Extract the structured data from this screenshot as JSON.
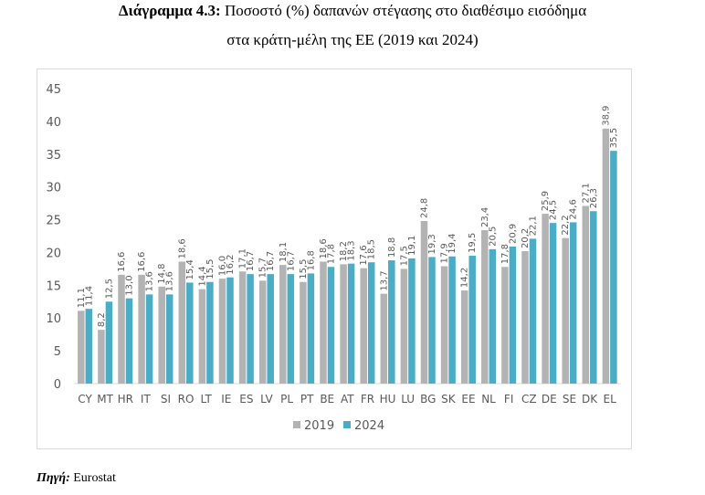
{
  "title": {
    "bold": "Διάγραμμα 4.3:",
    "line1": "Ποσοστό (%) δαπανών στέγασης στο διαθέσιμο εισόδημα",
    "line2": "στα κράτη-μέλη της ΕΕ (2019 και 2024)"
  },
  "source": {
    "label": "Πηγή:",
    "value": "Eurostat"
  },
  "chart_data": {
    "type": "bar",
    "categories": [
      "CY",
      "MT",
      "HR",
      "IT",
      "SI",
      "RO",
      "LT",
      "IE",
      "ES",
      "LV",
      "PL",
      "PT",
      "BE",
      "AT",
      "FR",
      "HU",
      "LU",
      "BG",
      "SK",
      "EE",
      "NL",
      "FI",
      "CZ",
      "DE",
      "SE",
      "DK",
      "EL"
    ],
    "series": [
      {
        "name": "2019",
        "color": "#b3b3b3",
        "values": [
          11.1,
          8.2,
          16.6,
          16.6,
          14.8,
          18.6,
          14.4,
          16.0,
          17.1,
          15.7,
          18.1,
          15.5,
          18.6,
          18.2,
          17.6,
          13.7,
          17.5,
          24.8,
          17.9,
          14.2,
          23.4,
          17.8,
          20.2,
          25.9,
          22.2,
          27.1,
          38.9
        ]
      },
      {
        "name": "2024",
        "color": "#4bacc6",
        "values": [
          11.4,
          12.5,
          13.0,
          13.6,
          13.6,
          15.4,
          15.5,
          16.2,
          16.7,
          16.7,
          16.7,
          16.8,
          17.8,
          18.3,
          18.5,
          18.8,
          19.1,
          19.3,
          19.4,
          19.5,
          20.5,
          20.9,
          22.1,
          24.5,
          24.6,
          26.3,
          35.5
        ]
      }
    ],
    "ylim": [
      0,
      45
    ],
    "yticks": [
      0,
      5,
      10,
      15,
      20,
      25,
      30,
      35,
      40,
      45
    ],
    "grid": false,
    "legend": "bottom",
    "data_labels": true
  }
}
